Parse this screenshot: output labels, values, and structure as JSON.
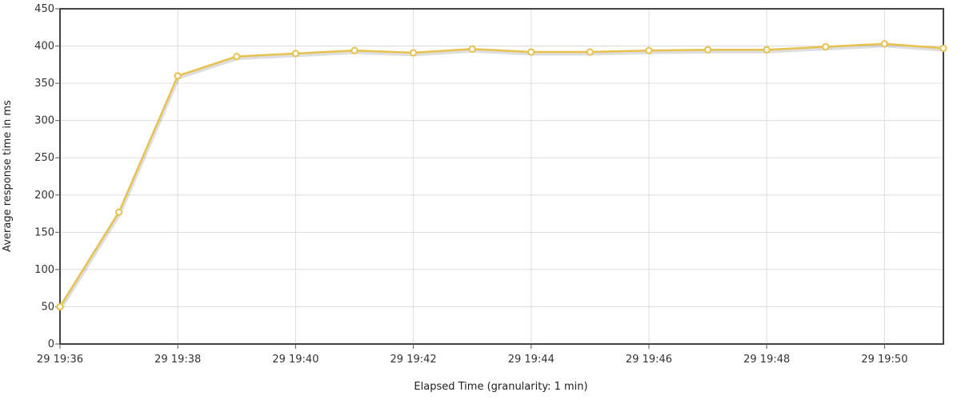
{
  "chart_data": {
    "type": "line",
    "title": "",
    "xlabel": "Elapsed Time (granularity: 1 min)",
    "ylabel": "Average response time in ms",
    "ylim": [
      0,
      450
    ],
    "yticks": [
      0,
      50,
      100,
      150,
      200,
      250,
      300,
      350,
      400,
      450
    ],
    "xtick_labels": [
      "29 19:36",
      "29 19:38",
      "29 19:40",
      "29 19:42",
      "29 19:44",
      "29 19:46",
      "29 19:48",
      "29 19:50"
    ],
    "grid": true,
    "legend": "none",
    "series": [
      {
        "color": "#e8c24e",
        "x": [
          "19:36",
          "19:37",
          "19:38",
          "19:39",
          "19:40",
          "19:41",
          "19:42",
          "19:43",
          "19:44",
          "19:45",
          "19:46",
          "19:47",
          "19:48",
          "19:49",
          "19:50",
          "19:51"
        ],
        "values": [
          50,
          177,
          360,
          386,
          390,
          394,
          391,
          396,
          392,
          392,
          394,
          395,
          395,
          399,
          403,
          397
        ]
      }
    ]
  }
}
